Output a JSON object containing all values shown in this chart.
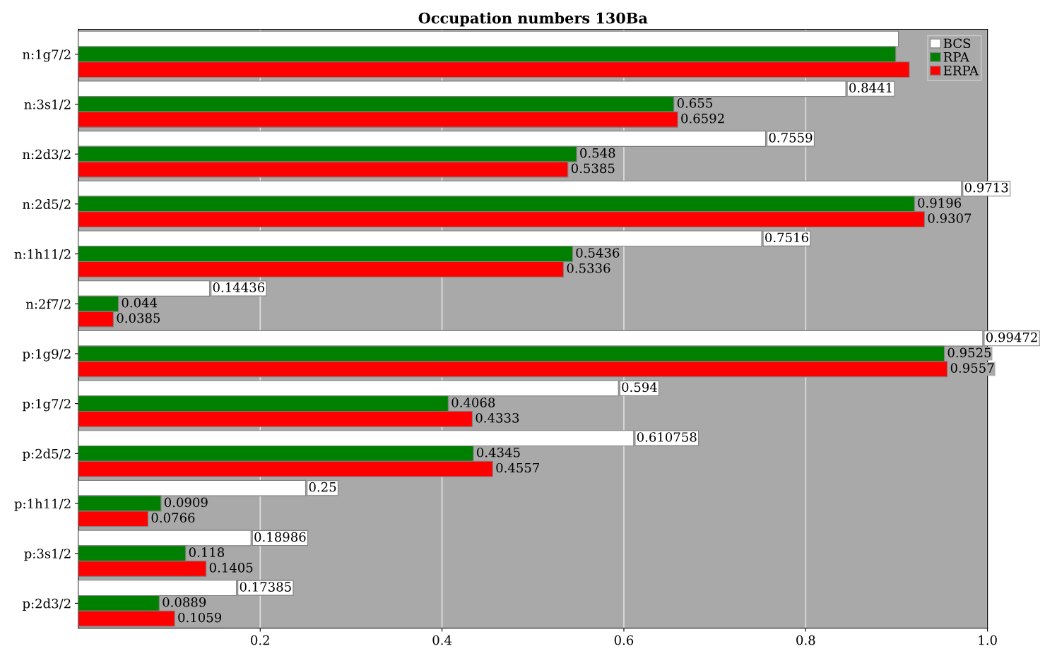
{
  "chart_data": {
    "type": "bar",
    "orientation": "horizontal",
    "title": "Occupation numbers 130Ba",
    "categories": [
      "n:1g7/2",
      "n:3s1/2",
      "n:2d3/2",
      "n:2d5/2",
      "n:1h11/2",
      "n:2f7/2",
      "p:1g9/2",
      "p:1g7/2",
      "p:2d5/2",
      "p:1h11/2",
      "p:3s1/2",
      "p:2d3/2"
    ],
    "series": [
      {
        "name": "BCS",
        "color": "#ffffff",
        "values": [
          0.902,
          0.8441,
          0.7559,
          0.9713,
          0.7516,
          0.14436,
          0.99472,
          0.594,
          0.610758,
          0.25,
          0.18986,
          0.17385
        ],
        "value_labels": [
          null,
          "0.8441",
          "0.7559",
          "0.9713",
          "0.7516",
          "0.14436",
          "0.99472",
          "0.594",
          "0.610758",
          "0.25",
          "0.18986",
          "0.17385"
        ]
      },
      {
        "name": "RPA",
        "color": "#008000",
        "values": [
          0.899,
          0.655,
          0.548,
          0.9196,
          0.5436,
          0.044,
          0.9525,
          0.4068,
          0.4345,
          0.0909,
          0.118,
          0.0889
        ],
        "value_labels": [
          null,
          "0.655",
          "0.548",
          "0.9196",
          "0.5436",
          "0.044",
          "0.9525",
          "0.4068",
          "0.4345",
          "0.0909",
          "0.118",
          "0.0889"
        ]
      },
      {
        "name": "ERPA",
        "color": "#ff0000",
        "values": [
          0.914,
          0.6592,
          0.5385,
          0.9307,
          0.5336,
          0.0385,
          0.9557,
          0.4333,
          0.4557,
          0.0766,
          0.1405,
          0.1059
        ],
        "value_labels": [
          null,
          "0.6592",
          "0.5385",
          "0.9307",
          "0.5336",
          "0.0385",
          "0.9557",
          "0.4333",
          "0.4557",
          "0.0766",
          "0.1405",
          "0.1059"
        ]
      }
    ],
    "xlim": [
      0,
      1.0
    ],
    "xticks": [
      0.2,
      0.4,
      0.6,
      0.8,
      {
        "value": 1,
        "label": "1.0"
      }
    ],
    "grid": "x",
    "legend": "top right"
  }
}
